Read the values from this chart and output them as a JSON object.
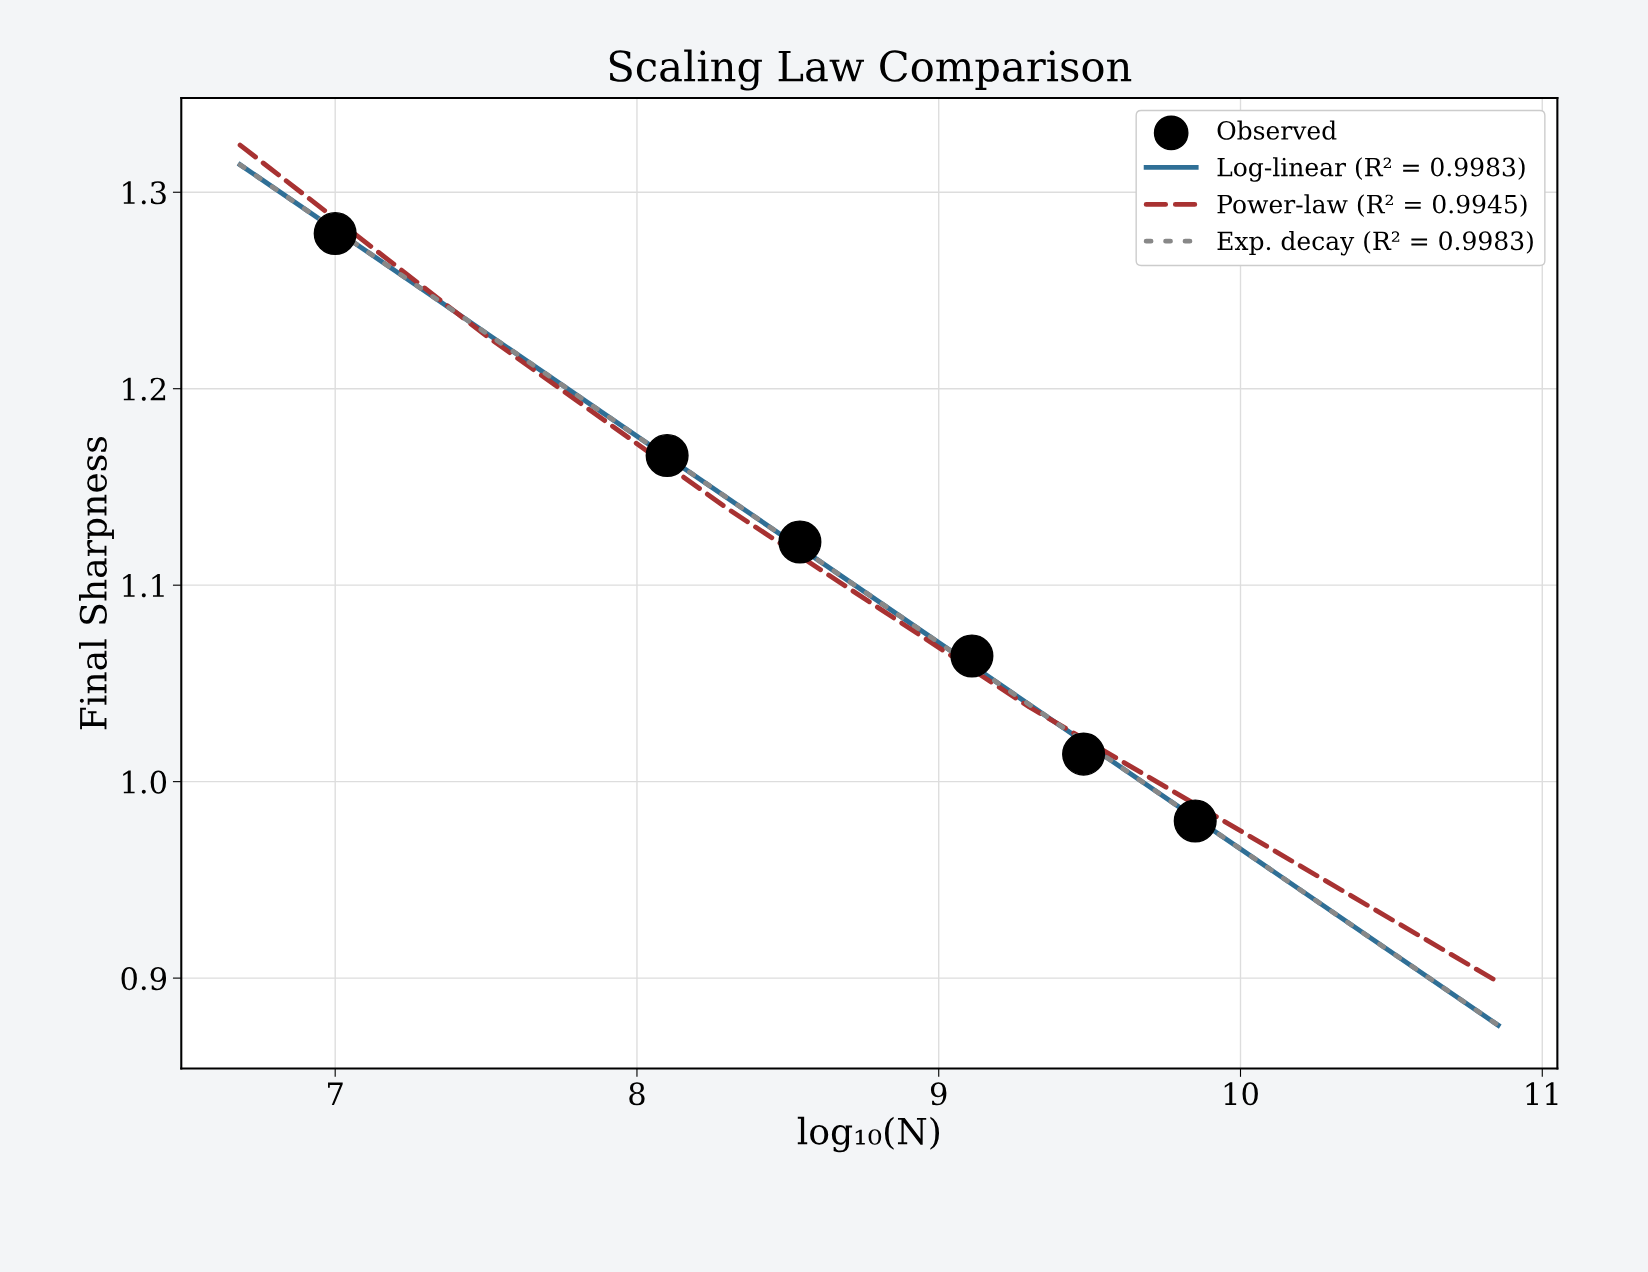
{
  "chart_data": {
    "type": "scatter",
    "title": "Scaling Law Comparison",
    "xlabel": "log₁₀(N)",
    "ylabel": "Final Sharpness",
    "xlim": [
      6.49,
      11.05
    ],
    "ylim": [
      0.854,
      1.348
    ],
    "xticks": [
      7,
      8,
      9,
      10,
      11
    ],
    "yticks": [
      0.9,
      {
        "value": 1.0,
        "label": "1.0"
      },
      1.1,
      1.2,
      1.3
    ],
    "grid": true,
    "legend": "top right",
    "series": [
      {
        "name": "Observed",
        "marker": "circle",
        "color": "#000000",
        "x": [
          7.0,
          8.1,
          8.54,
          9.11,
          9.48,
          9.85
        ],
        "values": [
          1.279,
          1.166,
          1.122,
          1.064,
          1.014,
          0.98
        ]
      },
      {
        "name": "Log-linear (R² = 0.9983)",
        "type": "line",
        "line_style": "solid",
        "color": "#2f6f96",
        "x": [
          6.685,
          10.854
        ],
        "values": [
          1.314,
          0.876
        ]
      },
      {
        "name": "Power-law (R² = 0.9945)",
        "type": "line",
        "line_style": "dashed",
        "color": "#a83232",
        "x": [
          6.685,
          7.5,
          8.3,
          9.3,
          10.854
        ],
        "values": [
          1.324,
          1.227,
          1.139,
          1.038,
          0.898
        ]
      },
      {
        "name": "Exp. decay (R² = 0.9983)",
        "type": "line",
        "line_style": "dotted",
        "color": "#888888",
        "x": [
          6.685,
          10.854
        ],
        "values": [
          1.314,
          0.876
        ]
      }
    ]
  }
}
